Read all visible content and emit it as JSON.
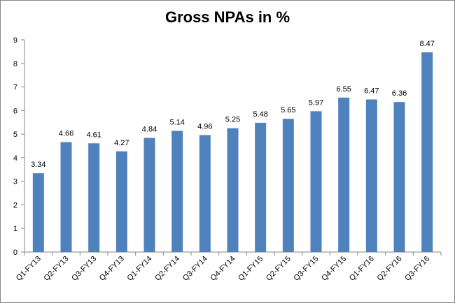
{
  "chart_data": {
    "type": "bar",
    "title": "Gross NPAs in %",
    "xlabel": "",
    "ylabel": "",
    "categories": [
      "Q1-FY13",
      "Q2-FY13",
      "Q3-FY13",
      "Q4-FY13",
      "Q1-FY14",
      "Q2-FY14",
      "Q3-FY14",
      "Q4-FY14",
      "Q1-FY15",
      "Q2-FY15",
      "Q3-FY15",
      "Q4-FY15",
      "Q1-FY16",
      "Q2-FY16",
      "Q3-FY16"
    ],
    "values": [
      3.34,
      4.66,
      4.61,
      4.27,
      4.84,
      5.14,
      4.96,
      5.25,
      5.48,
      5.65,
      5.97,
      6.55,
      6.47,
      6.36,
      8.47
    ],
    "data_labels": [
      "3.34",
      "4.66",
      "4.61",
      "4.27",
      "4.84",
      "5.14",
      "4.96",
      "5.25",
      "5.48",
      "5.65",
      "5.97",
      "6.55",
      "6.47",
      "6.36",
      "8.47"
    ],
    "y_ticks": [
      "0",
      "1",
      "2",
      "3",
      "4",
      "5",
      "6",
      "7",
      "8",
      "9"
    ],
    "ylim": [
      0,
      9
    ],
    "grid": false,
    "legend": "none",
    "bar_color": "#4F81BD",
    "axis_color": "#868686"
  }
}
